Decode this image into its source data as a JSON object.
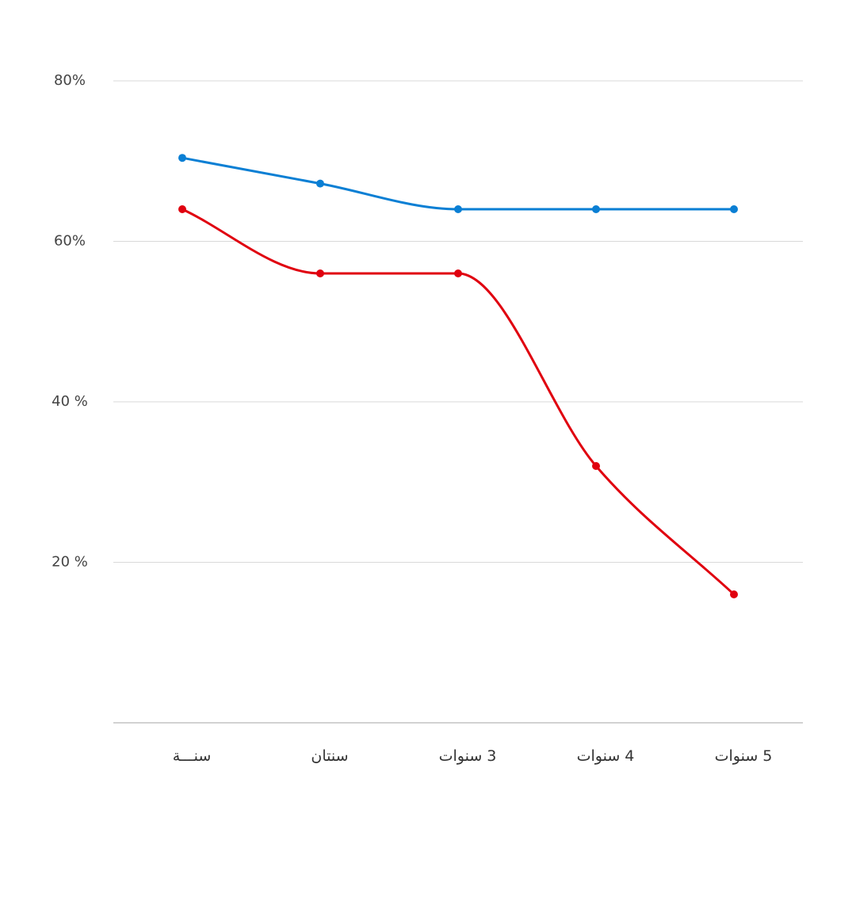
{
  "chart_data": {
    "type": "line",
    "categories": [
      "سنـــة",
      "سنتان",
      "3 سنوات",
      "4 سنوات",
      "5 سنوات"
    ],
    "y_tick_labels": [
      {
        "value": 80,
        "label": "80%"
      },
      {
        "value": 60,
        "label": "60%"
      },
      {
        "value": 40,
        "label": "40 %"
      },
      {
        "value": 20,
        "label": "20 %"
      }
    ],
    "ylim": [
      0,
      80
    ],
    "grid": true,
    "smooth": true,
    "series": [
      {
        "color": "#0a7fd4",
        "values": [
          70.4,
          67.2,
          64.0,
          64.0,
          64.0
        ]
      },
      {
        "color": "#e0000f",
        "values": [
          64.0,
          56.0,
          56.0,
          32.0,
          16.0
        ]
      }
    ]
  }
}
